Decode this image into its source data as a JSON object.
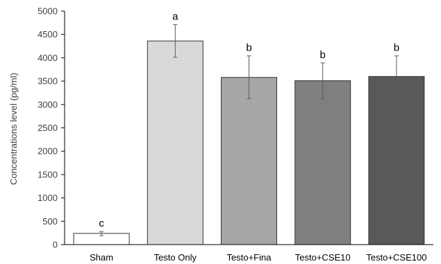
{
  "chart_data": {
    "type": "bar",
    "title": "",
    "xlabel": "",
    "ylabel": "Concentrations level (pg/ml)",
    "ylim": [
      0,
      5000
    ],
    "yticks": [
      0,
      500,
      1000,
      1500,
      2000,
      2500,
      3000,
      3500,
      4000,
      4500,
      5000
    ],
    "grid": false,
    "legend": "none",
    "categories": [
      "Sham",
      "Testo Only",
      "Testo+Fina",
      "Testo+CSE10",
      "Testo+CSE100"
    ],
    "values": [
      240,
      4360,
      3580,
      3510,
      3600
    ],
    "error_low": [
      190,
      4010,
      3120,
      3120,
      3150
    ],
    "error_high": [
      280,
      4710,
      4040,
      3890,
      4040
    ],
    "significance_labels": [
      "c",
      "a",
      "b",
      "b",
      "b"
    ],
    "bar_colors": [
      "#ffffff",
      "#d9d9d9",
      "#a6a6a6",
      "#7f7f7f",
      "#595959"
    ],
    "bar_outline_color": "#333333",
    "axis_color": "#000000"
  }
}
